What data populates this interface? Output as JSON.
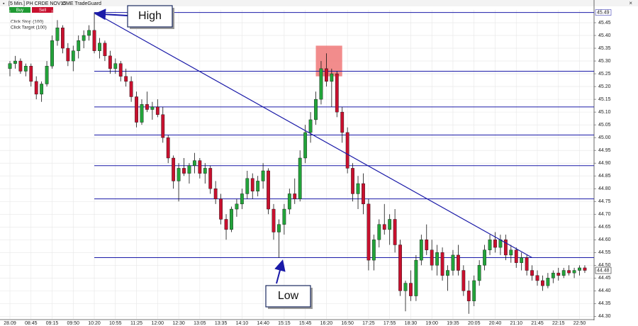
{
  "header": {
    "instrument": "[5 Min.] PH CRDE NOV15",
    "plugin": "CME TradeGuard",
    "buy": "Buy",
    "sell": "Sell",
    "stop": "Click Stop  (100)",
    "target": "Click Target  (100)"
  },
  "chart_data": {
    "type": "candlestick",
    "categories": [
      "28.09",
      null,
      null,
      null,
      "08:45",
      null,
      null,
      null,
      "09:15",
      null,
      null,
      null,
      "09:50",
      null,
      null,
      null,
      "10:20",
      null,
      null,
      null,
      "10:55",
      null,
      null,
      null,
      "11:25",
      null,
      null,
      null,
      "12:00",
      null,
      null,
      null,
      "12:30",
      null,
      null,
      null,
      "13:05",
      null,
      null,
      null,
      "13:35",
      null,
      null,
      null,
      "14:10",
      null,
      null,
      null,
      "14:40",
      null,
      null,
      null,
      "15:15",
      null,
      null,
      null,
      "15:45",
      null,
      null,
      null,
      "16:20",
      null,
      null,
      null,
      "16:50",
      null,
      null,
      null,
      "17:25",
      null,
      null,
      null,
      "17:55",
      null,
      null,
      null,
      "18:30",
      null,
      null,
      null,
      "19:00",
      null,
      null,
      null,
      "19:35",
      null,
      null,
      null,
      "20:05",
      null,
      null,
      null,
      "20:40",
      null,
      null,
      null,
      "21:10",
      null,
      null,
      null,
      "21:45",
      null,
      null,
      null,
      "22:15",
      null,
      null,
      null,
      "22:50",
      null
    ],
    "candles": [
      [
        45.27,
        45.3,
        45.24,
        45.29
      ],
      [
        45.29,
        45.32,
        45.27,
        45.3
      ],
      [
        45.3,
        45.31,
        45.25,
        45.26
      ],
      [
        45.26,
        45.29,
        45.24,
        45.28
      ],
      [
        45.28,
        45.29,
        45.2,
        45.22
      ],
      [
        45.22,
        45.24,
        45.15,
        45.17
      ],
      [
        45.17,
        45.22,
        45.14,
        45.21
      ],
      [
        45.21,
        45.3,
        45.2,
        45.28
      ],
      [
        45.28,
        45.4,
        45.27,
        45.38
      ],
      [
        45.38,
        45.46,
        45.36,
        45.43
      ],
      [
        45.43,
        45.44,
        45.33,
        45.35
      ],
      [
        45.35,
        45.37,
        45.28,
        45.3
      ],
      [
        45.3,
        45.36,
        45.26,
        45.34
      ],
      [
        45.34,
        45.4,
        45.31,
        45.38
      ],
      [
        45.38,
        45.42,
        45.35,
        45.4
      ],
      [
        45.4,
        45.44,
        45.38,
        45.42
      ],
      [
        45.42,
        45.49,
        45.33,
        45.34
      ],
      [
        45.34,
        45.39,
        45.31,
        45.37
      ],
      [
        45.37,
        45.38,
        45.3,
        45.32
      ],
      [
        45.32,
        45.34,
        45.25,
        45.27
      ],
      [
        45.27,
        45.31,
        45.25,
        45.29
      ],
      [
        45.29,
        45.3,
        45.22,
        45.24
      ],
      [
        45.24,
        45.27,
        45.2,
        45.22
      ],
      [
        45.22,
        45.24,
        45.14,
        45.16
      ],
      [
        45.16,
        45.18,
        45.04,
        45.06
      ],
      [
        45.06,
        45.15,
        45.05,
        45.13
      ],
      [
        45.13,
        45.18,
        45.1,
        45.11
      ],
      [
        45.11,
        45.14,
        45.07,
        45.12
      ],
      [
        45.12,
        45.15,
        45.08,
        45.09
      ],
      [
        45.09,
        45.12,
        44.98,
        45.0
      ],
      [
        45.0,
        45.01,
        44.9,
        44.92
      ],
      [
        44.92,
        44.93,
        44.8,
        44.83
      ],
      [
        44.83,
        44.9,
        44.75,
        44.88
      ],
      [
        44.88,
        44.92,
        44.85,
        44.86
      ],
      [
        44.86,
        44.9,
        44.82,
        44.89
      ],
      [
        44.89,
        44.94,
        44.86,
        44.91
      ],
      [
        44.91,
        44.92,
        44.84,
        44.86
      ],
      [
        44.86,
        44.9,
        44.82,
        44.88
      ],
      [
        44.88,
        44.89,
        44.78,
        44.8
      ],
      [
        44.8,
        44.83,
        44.74,
        44.76
      ],
      [
        44.76,
        44.78,
        44.66,
        44.68
      ],
      [
        44.68,
        44.7,
        44.6,
        44.64
      ],
      [
        44.64,
        44.73,
        44.63,
        44.72
      ],
      [
        44.72,
        44.76,
        44.69,
        44.74
      ],
      [
        44.74,
        44.8,
        44.72,
        44.78
      ],
      [
        44.78,
        44.87,
        44.76,
        44.84
      ],
      [
        44.84,
        44.86,
        44.76,
        44.79
      ],
      [
        44.79,
        44.85,
        44.77,
        44.83
      ],
      [
        44.83,
        44.9,
        44.8,
        44.87
      ],
      [
        44.87,
        44.88,
        44.7,
        44.72
      ],
      [
        44.72,
        44.74,
        44.6,
        44.63
      ],
      [
        44.63,
        44.68,
        44.53,
        44.66
      ],
      [
        44.66,
        44.74,
        44.62,
        44.72
      ],
      [
        44.72,
        44.8,
        44.7,
        44.78
      ],
      [
        44.78,
        44.84,
        44.74,
        44.76
      ],
      [
        44.76,
        44.95,
        44.75,
        44.92
      ],
      [
        44.92,
        45.05,
        44.9,
        45.02
      ],
      [
        45.02,
        45.1,
        44.98,
        45.07
      ],
      [
        45.07,
        45.18,
        45.05,
        45.15
      ],
      [
        45.15,
        45.3,
        45.13,
        45.27
      ],
      [
        45.27,
        45.33,
        45.2,
        45.22
      ],
      [
        45.22,
        45.27,
        45.12,
        45.25
      ],
      [
        45.25,
        45.26,
        45.08,
        45.1
      ],
      [
        45.1,
        45.12,
        44.98,
        45.02
      ],
      [
        45.02,
        45.04,
        44.86,
        44.88
      ],
      [
        44.88,
        44.9,
        44.75,
        44.78
      ],
      [
        44.78,
        44.85,
        44.72,
        44.82
      ],
      [
        44.82,
        44.86,
        44.7,
        44.74
      ],
      [
        44.74,
        44.76,
        44.48,
        44.52
      ],
      [
        44.52,
        44.62,
        44.48,
        44.6
      ],
      [
        44.6,
        44.68,
        44.57,
        44.66
      ],
      [
        44.66,
        44.74,
        44.62,
        44.64
      ],
      [
        44.64,
        44.7,
        44.58,
        44.68
      ],
      [
        44.68,
        44.72,
        44.55,
        44.58
      ],
      [
        44.58,
        44.6,
        44.38,
        44.4
      ],
      [
        44.4,
        44.44,
        44.32,
        44.43
      ],
      [
        44.43,
        44.48,
        44.36,
        44.38
      ],
      [
        44.38,
        44.54,
        44.36,
        44.52
      ],
      [
        44.52,
        44.62,
        44.5,
        44.6
      ],
      [
        44.6,
        44.66,
        44.54,
        44.56
      ],
      [
        44.56,
        44.6,
        44.48,
        44.5
      ],
      [
        44.5,
        44.58,
        44.46,
        44.55
      ],
      [
        44.55,
        44.57,
        44.44,
        44.46
      ],
      [
        44.46,
        44.5,
        44.4,
        44.48
      ],
      [
        44.48,
        44.56,
        44.46,
        44.54
      ],
      [
        44.54,
        44.58,
        44.46,
        44.48
      ],
      [
        44.48,
        44.5,
        44.38,
        44.4
      ],
      [
        44.4,
        44.44,
        44.31,
        44.36
      ],
      [
        44.36,
        44.46,
        44.34,
        44.44
      ],
      [
        44.44,
        44.52,
        44.42,
        44.5
      ],
      [
        44.5,
        44.58,
        44.48,
        44.56
      ],
      [
        44.56,
        44.62,
        44.54,
        44.6
      ],
      [
        44.6,
        44.63,
        44.55,
        44.57
      ],
      [
        44.57,
        44.62,
        44.54,
        44.6
      ],
      [
        44.6,
        44.62,
        44.52,
        44.54
      ],
      [
        44.54,
        44.58,
        44.51,
        44.56
      ],
      [
        44.56,
        44.57,
        44.49,
        44.51
      ],
      [
        44.51,
        44.55,
        44.48,
        44.53
      ],
      [
        44.53,
        44.54,
        44.46,
        44.48
      ],
      [
        44.48,
        44.5,
        44.44,
        44.46
      ],
      [
        44.46,
        44.48,
        44.42,
        44.44
      ],
      [
        44.44,
        44.46,
        44.4,
        44.42
      ],
      [
        44.42,
        44.47,
        44.41,
        44.45
      ],
      [
        44.45,
        44.48,
        44.43,
        44.47
      ],
      [
        44.47,
        44.49,
        44.44,
        44.46
      ],
      [
        44.46,
        44.49,
        44.45,
        44.48
      ],
      [
        44.48,
        44.5,
        44.46,
        44.47
      ],
      [
        44.47,
        44.49,
        44.45,
        44.48
      ],
      [
        44.48,
        44.5,
        44.46,
        44.49
      ],
      [
        44.49,
        44.5,
        44.47,
        44.48
      ]
    ],
    "up_color": "#22a33a",
    "down_color": "#c8102e",
    "ylim": [
      44.29,
      45.5
    ],
    "yticks": [
      {
        "value": 44.3,
        "label": "44.30"
      },
      44.35,
      {
        "value": 44.4,
        "label": "44.40"
      },
      44.45,
      {
        "value": 44.5,
        "label": "44.50"
      },
      44.55,
      {
        "value": 44.6,
        "label": "44.60"
      },
      44.65,
      {
        "value": 44.7,
        "label": "44.70"
      },
      44.75,
      {
        "value": 44.8,
        "label": "44.80"
      },
      44.85,
      {
        "value": 44.9,
        "label": "44.90"
      },
      44.95,
      {
        "value": 45.0,
        "label": "45.00"
      },
      45.05,
      {
        "value": 45.1,
        "label": "45.10"
      },
      45.15,
      {
        "value": 45.2,
        "label": "45.20"
      },
      45.25,
      {
        "value": 45.3,
        "label": "45.30"
      },
      45.35,
      {
        "value": 45.4,
        "label": "45.40"
      },
      45.45
    ],
    "grid": true,
    "levels": [
      45.49,
      45.26,
      45.12,
      45.01,
      44.89,
      44.76,
      44.53
    ],
    "trendline": {
      "x": [
        16,
        99
      ],
      "y": [
        45.49,
        44.53
      ]
    },
    "highlight": {
      "x": [
        58,
        63
      ],
      "y": [
        45.24,
        45.36
      ]
    },
    "annotations": [
      "High",
      "Low"
    ]
  }
}
